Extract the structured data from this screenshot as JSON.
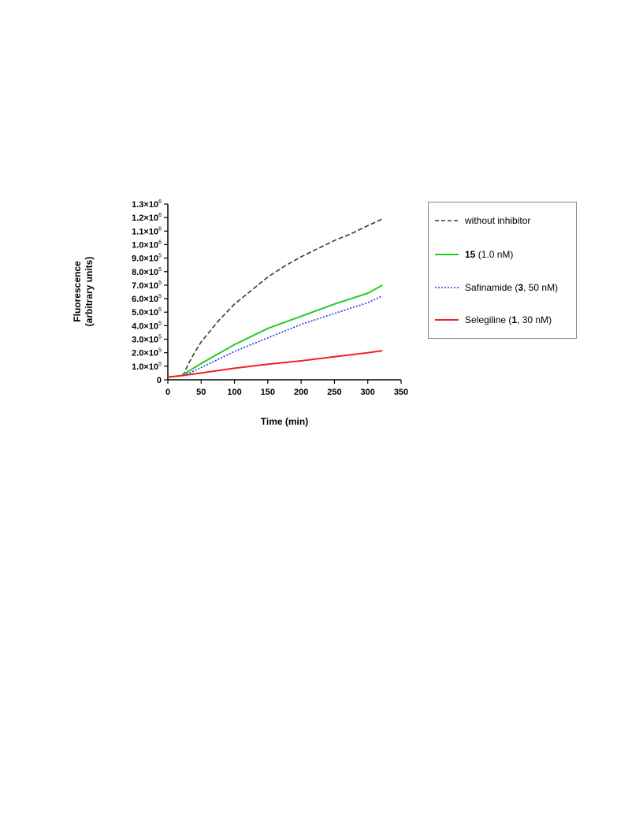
{
  "chart_data": {
    "type": "line",
    "xlabel": "Time (min)",
    "ylabel_line1": "Fluorescence",
    "ylabel_line2": "(arbitrary units)",
    "xlim": [
      0,
      350
    ],
    "ylim": [
      0,
      1300000
    ],
    "x_ticks": [
      0,
      50,
      100,
      150,
      200,
      250,
      300,
      350
    ],
    "x_tick_labels": [
      "0",
      "50",
      "100",
      "150",
      "200",
      "250",
      "300",
      "350"
    ],
    "y_ticks": [
      0,
      100000,
      200000,
      300000,
      400000,
      500000,
      600000,
      700000,
      800000,
      900000,
      1000000,
      1100000,
      1200000,
      1300000
    ],
    "y_tick_labels": [
      {
        "mant": "0",
        "exp": ""
      },
      {
        "mant": "1.0×10",
        "exp": "5"
      },
      {
        "mant": "2.0×10",
        "exp": "5"
      },
      {
        "mant": "3.0×10",
        "exp": "5"
      },
      {
        "mant": "4.0×10",
        "exp": "5"
      },
      {
        "mant": "5.0×10",
        "exp": "5"
      },
      {
        "mant": "6.0×10",
        "exp": "5"
      },
      {
        "mant": "7.0×10",
        "exp": "5"
      },
      {
        "mant": "8.0×10",
        "exp": "5"
      },
      {
        "mant": "9.0×10",
        "exp": "5"
      },
      {
        "mant": "1.0×10",
        "exp": "6"
      },
      {
        "mant": "1.1×10",
        "exp": "6"
      },
      {
        "mant": "1.2×10",
        "exp": "6"
      },
      {
        "mant": "1.3×10",
        "exp": "6"
      }
    ],
    "grid": false,
    "legend_position": "right",
    "series": [
      {
        "legend_plain": "without inhibitor",
        "color": "#3d3d1f",
        "style": "dashed",
        "points": [
          [
            0,
            20000
          ],
          [
            10,
            25000
          ],
          [
            20,
            30000
          ],
          [
            25,
            50000
          ],
          [
            30,
            110000
          ],
          [
            40,
            200000
          ],
          [
            50,
            280000
          ],
          [
            75,
            430000
          ],
          [
            100,
            560000
          ],
          [
            125,
            660000
          ],
          [
            150,
            760000
          ],
          [
            175,
            840000
          ],
          [
            200,
            910000
          ],
          [
            225,
            970000
          ],
          [
            250,
            1030000
          ],
          [
            275,
            1080000
          ],
          [
            300,
            1140000
          ],
          [
            322,
            1190000
          ]
        ]
      },
      {
        "legend_bold": "15",
        "legend_rest": " (1.0 nM)",
        "color": "#22cc22",
        "style": "solid",
        "points": [
          [
            0,
            20000
          ],
          [
            20,
            30000
          ],
          [
            30,
            60000
          ],
          [
            50,
            120000
          ],
          [
            75,
            190000
          ],
          [
            100,
            260000
          ],
          [
            150,
            380000
          ],
          [
            200,
            470000
          ],
          [
            250,
            560000
          ],
          [
            300,
            640000
          ],
          [
            322,
            700000
          ]
        ]
      },
      {
        "legend_pre": "Safinamide (",
        "legend_bold": "3",
        "legend_rest": ", 50 nM)",
        "color": "#2233ee",
        "style": "dotted",
        "points": [
          [
            0,
            20000
          ],
          [
            20,
            30000
          ],
          [
            30,
            45000
          ],
          [
            50,
            90000
          ],
          [
            75,
            150000
          ],
          [
            100,
            210000
          ],
          [
            150,
            310000
          ],
          [
            200,
            410000
          ],
          [
            250,
            490000
          ],
          [
            300,
            570000
          ],
          [
            322,
            620000
          ]
        ]
      },
      {
        "legend_pre": "Selegiline (",
        "legend_bold": "1",
        "legend_rest": ", 30 nM)",
        "color": "#ee2222",
        "style": "solid",
        "points": [
          [
            0,
            20000
          ],
          [
            20,
            30000
          ],
          [
            50,
            50000
          ],
          [
            100,
            85000
          ],
          [
            150,
            115000
          ],
          [
            200,
            140000
          ],
          [
            250,
            170000
          ],
          [
            300,
            200000
          ],
          [
            322,
            215000
          ]
        ]
      }
    ]
  }
}
